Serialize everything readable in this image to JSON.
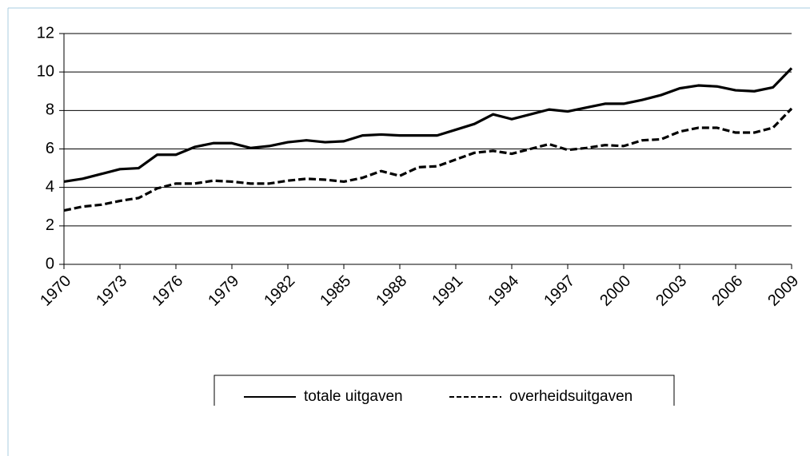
{
  "chart_data": {
    "type": "line",
    "x": [
      1970,
      1971,
      1972,
      1973,
      1974,
      1975,
      1976,
      1977,
      1978,
      1979,
      1980,
      1981,
      1982,
      1983,
      1984,
      1985,
      1986,
      1987,
      1988,
      1989,
      1990,
      1991,
      1992,
      1993,
      1994,
      1995,
      1996,
      1997,
      1998,
      1999,
      2000,
      2001,
      2002,
      2003,
      2004,
      2005,
      2006,
      2007,
      2008,
      2009
    ],
    "series": [
      {
        "name": "totale uitgaven",
        "color": "#000000",
        "dashed": false,
        "values": [
          4.3,
          4.45,
          4.7,
          4.95,
          5.0,
          5.7,
          5.7,
          6.1,
          6.3,
          6.3,
          6.05,
          6.15,
          6.35,
          6.45,
          6.35,
          6.4,
          6.7,
          6.75,
          6.7,
          6.7,
          6.7,
          7.0,
          7.3,
          7.8,
          7.55,
          7.8,
          8.05,
          7.95,
          8.15,
          8.35,
          8.35,
          8.55,
          8.8,
          9.15,
          9.3,
          9.25,
          9.05,
          9.0,
          9.2,
          10.2
        ]
      },
      {
        "name": "overheidsuitgaven",
        "color": "#000000",
        "dashed": true,
        "values": [
          2.8,
          3.0,
          3.1,
          3.3,
          3.45,
          3.95,
          4.2,
          4.2,
          4.35,
          4.3,
          4.2,
          4.2,
          4.35,
          4.45,
          4.4,
          4.3,
          4.5,
          4.85,
          4.6,
          5.05,
          5.1,
          5.45,
          5.8,
          5.9,
          5.75,
          6.0,
          6.25,
          5.95,
          6.05,
          6.2,
          6.15,
          6.45,
          6.5,
          6.9,
          7.1,
          7.1,
          6.85,
          6.85,
          7.1,
          8.1
        ]
      }
    ],
    "xlim": [
      1970,
      2009
    ],
    "xticks": [
      1970,
      1973,
      1976,
      1979,
      1982,
      1985,
      1988,
      1991,
      1994,
      1997,
      2000,
      2003,
      2006,
      2009
    ],
    "ylim": [
      0,
      12
    ],
    "yticks": [
      0,
      2,
      4,
      6,
      8,
      10,
      12
    ],
    "grid": true,
    "legend": "bottom"
  }
}
